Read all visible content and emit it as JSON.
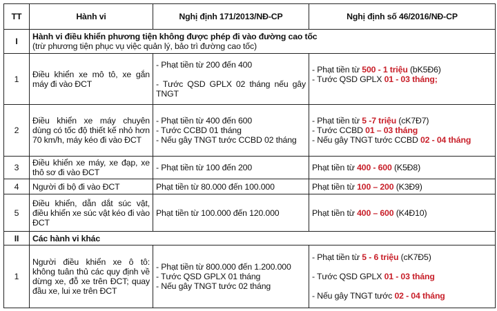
{
  "colors": {
    "emphasis": "#c8202a",
    "border": "#222222"
  },
  "table": {
    "headers": [
      "TT",
      "Hành vi",
      "Nghị định 171/2013/NĐ-CP",
      "Nghị định số 46/2016/NĐ-CP"
    ],
    "rows": [
      {
        "kind": "section",
        "tt": "I",
        "title": "Hành vi điều khiển phương tiện không được phép đi vào đường cao tốc",
        "subtitle": "(trừ phương tiện phục vụ việc quản lý, bảo trì đường cao tốc)"
      },
      {
        "kind": "item",
        "tt": "1",
        "behavior": "Điều khiển xe mô tô, xe gắn máy đi vào ĐCT",
        "old": [
          [
            "- Phạt tiền từ 200 đến 400"
          ],
          [],
          [
            "- Tước QSD GPLX 02 tháng nếu gây TNGT"
          ]
        ],
        "new": [
          [
            {
              "t": "- Phạt tiền từ "
            },
            {
              "t": "500 - 1 triệu",
              "r": true
            },
            {
              "t": " (bK5Đ6)"
            }
          ],
          [
            {
              "t": "- Tước QSD GPLX "
            },
            {
              "t": "01 - 03 tháng;",
              "r": true
            }
          ],
          []
        ]
      },
      {
        "kind": "item",
        "tt": "2",
        "behavior": "Điều khiển xe máy chuyên dùng có tốc độ thiết kế nhỏ hơn 70 km/h, máy kéo đi vào ĐCT",
        "old": [
          [
            "- Phạt tiền từ 400 đến 600"
          ],
          [
            "- Tước CCBD 01 tháng"
          ],
          [
            "- Nếu gây TNGT tước CCBD 02 tháng"
          ]
        ],
        "new": [
          [
            {
              "t": "- Phạt tiền từ  "
            },
            {
              "t": "5 -7 triệu",
              "r": true
            },
            {
              "t": " (cK7Đ7)"
            }
          ],
          [
            {
              "t": "- Tước CCBD "
            },
            {
              "t": "01 – 03 tháng",
              "r": true
            }
          ],
          [
            {
              "t": "- Nếu gây TNGT tước CCBD "
            },
            {
              "t": "02 - 04 tháng",
              "r": true
            }
          ]
        ]
      },
      {
        "kind": "item",
        "tt": "3",
        "behavior": "Điều khiển xe máy, xe đạp, xe thô sơ đi vào ĐCT",
        "old": [
          [
            "- Phạt tiền từ 100 đến 200"
          ]
        ],
        "new": [
          [
            {
              "t": "Phạt tiền từ "
            },
            {
              "t": "400 - 600",
              "r": true
            },
            {
              "t": " (K5Đ8)"
            }
          ]
        ]
      },
      {
        "kind": "item",
        "tt": "4",
        "behavior": "Người đi bộ đi vào ĐCT",
        "old": [
          [
            "Phạt tiền từ 80.000 đến 100.000"
          ]
        ],
        "new": [
          [
            {
              "t": "Phạt tiền từ "
            },
            {
              "t": "100 – 200",
              "r": true
            },
            {
              "t": " (K3Đ9)"
            }
          ]
        ]
      },
      {
        "kind": "item",
        "tt": "5",
        "behavior": "Điều khiển, dẫn dắt súc vật, điều khiển xe súc vật kéo đi vào ĐCT",
        "old": [
          [
            "Phạt tiền từ 100.000 đến 120.000"
          ]
        ],
        "new": [
          [
            {
              "t": "Phạt tiền từ "
            },
            {
              "t": "400 – 600",
              "r": true
            },
            {
              "t": " (K4Đ10)"
            }
          ]
        ]
      },
      {
        "kind": "section",
        "tt": "II",
        "title": "Các hành vi khác"
      },
      {
        "kind": "item",
        "tt": "1",
        "behavior": "Người điều khiển xe ô tô: không tuân thủ các quy định về dừng xe, đỗ xe trên ĐCT; quay đầu xe, lui xe trên ĐCT",
        "old": [
          [
            "- Phạt tiền từ 800.000 đến 1.200.000"
          ],
          [
            "- Tước QSD GPLX 01 tháng"
          ],
          [
            "- Nếu gây TNGT tước 02 tháng"
          ]
        ],
        "new": [
          [
            {
              "t": "-  Phạt tiền từ  "
            },
            {
              "t": "5 - 6 triệu",
              "r": true
            },
            {
              "t": " (cK7Đ5)"
            }
          ],
          [],
          [
            {
              "t": "- Tước QSD GPLX "
            },
            {
              "t": "01 - 03 tháng",
              "r": true
            }
          ],
          [],
          [
            {
              "t": "- Nếu gây TNGT tước "
            },
            {
              "t": "02 - 04 tháng",
              "r": true
            }
          ]
        ]
      }
    ]
  }
}
